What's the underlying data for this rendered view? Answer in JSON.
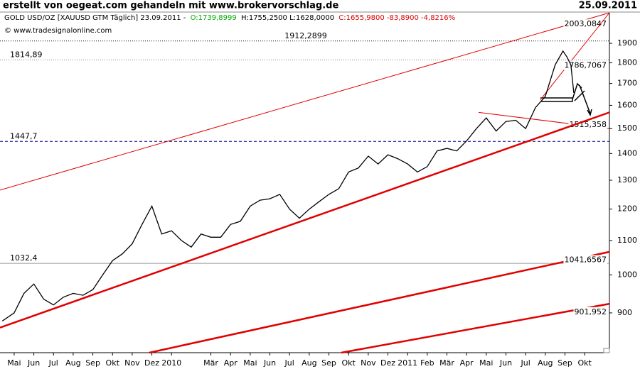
{
  "chart_data": {
    "type": "line",
    "title": "erstellt von oegeat.com gehandeln mit www.brokervorschlag.de",
    "date": "25.09.2011",
    "instrument": "GOLD USD/OZ [XAUUSD GTM  Täglich] 23.09.2011 -",
    "open": "O:1739,8999",
    "high_low": "H:1755,2500 L:1628,0000",
    "close": "C:1655,9800 -83,8900 -4,8216%",
    "source": "© www.tradesignalonline.com",
    "log_scale": true,
    "xlim": [
      -0.72,
      30.26
    ],
    "ylim": [
      806,
      2068
    ],
    "yticks": [
      900,
      1000,
      1100,
      1200,
      1300,
      1400,
      1500,
      1600,
      1700,
      1800,
      1900
    ],
    "xticks": [
      {
        "value": 0,
        "label": "Mai"
      },
      {
        "value": 1,
        "label": "Jun"
      },
      {
        "value": 2,
        "label": "Jul"
      },
      {
        "value": 3,
        "label": "Aug"
      },
      {
        "value": 4,
        "label": "Sep"
      },
      {
        "value": 5,
        "label": "Okt"
      },
      {
        "value": 6,
        "label": "Nov"
      },
      {
        "value": 7,
        "label": "Dez"
      },
      {
        "value": 8,
        "label": "2010"
      },
      {
        "value": 10,
        "label": "Mär"
      },
      {
        "value": 11,
        "label": "Apr"
      },
      {
        "value": 12,
        "label": "Mai"
      },
      {
        "value": 13,
        "label": "Jun"
      },
      {
        "value": 14,
        "label": "Jul"
      },
      {
        "value": 15,
        "label": "Aug"
      },
      {
        "value": 16,
        "label": "Sep"
      },
      {
        "value": 17,
        "label": "Okt"
      },
      {
        "value": 18,
        "label": "Nov"
      },
      {
        "value": 19,
        "label": "Dez"
      },
      {
        "value": 20,
        "label": "2011"
      },
      {
        "value": 21,
        "label": "Feb"
      },
      {
        "value": 22,
        "label": "Mär"
      },
      {
        "value": 23,
        "label": "Apr"
      },
      {
        "value": 24,
        "label": "Mai"
      },
      {
        "value": 25,
        "label": "Jun"
      },
      {
        "value": 26,
        "label": "Jul"
      },
      {
        "value": 27,
        "label": "Aug"
      },
      {
        "value": 28,
        "label": "Sep"
      },
      {
        "value": 29,
        "label": "Okt"
      }
    ],
    "series": [
      {
        "name": "GOLD USD/OZ",
        "color": "#000000",
        "x": [
          -0.6,
          0,
          0.5,
          1,
          1.5,
          2,
          2.5,
          3,
          3.5,
          4,
          4.5,
          5,
          5.5,
          6,
          6.5,
          7,
          7.5,
          8,
          8.5,
          9,
          9.5,
          10,
          10.5,
          11,
          11.5,
          12,
          12.5,
          13,
          13.5,
          14,
          14.5,
          15,
          15.5,
          16,
          16.5,
          17,
          17.5,
          18,
          18.5,
          19,
          19.5,
          20,
          20.5,
          21,
          21.5,
          22,
          22.5,
          23,
          23.5,
          24,
          24.5,
          25,
          25.5,
          26,
          26.5,
          27,
          27.5,
          27.9,
          28.1,
          28.3,
          28.45
        ],
        "values": [
          880,
          900,
          950,
          975,
          935,
          920,
          940,
          950,
          945,
          960,
          1000,
          1040,
          1060,
          1090,
          1150,
          1210,
          1120,
          1130,
          1100,
          1080,
          1120,
          1110,
          1110,
          1150,
          1160,
          1210,
          1230,
          1235,
          1250,
          1200,
          1170,
          1200,
          1225,
          1250,
          1270,
          1330,
          1345,
          1390,
          1360,
          1395,
          1380,
          1360,
          1330,
          1350,
          1410,
          1420,
          1410,
          1450,
          1500,
          1545,
          1490,
          1530,
          1535,
          1500,
          1590,
          1640,
          1790,
          1860,
          1830,
          1790,
          1656
        ]
      }
    ],
    "levels": [
      {
        "value": 1912.2899,
        "label": "1912,2899",
        "style": "dotted",
        "color": "#000000",
        "label_color": "#000080"
      },
      {
        "value": 1814.89,
        "label": "1814,89",
        "style": "dotted",
        "color": "#808080",
        "label_color": "#000080"
      },
      {
        "value": 1447.7,
        "label": "1447,7",
        "style": "dashed",
        "color": "#000080",
        "label_color": "#000080"
      },
      {
        "value": 1032.4,
        "label": "1032,4",
        "style": "solid",
        "color": "#999999",
        "label_color": "#808080"
      }
    ],
    "trendlines": [
      {
        "x": [
          -0.72,
          30.26
        ],
        "y": [
          1265,
          2068
        ],
        "label": "2003,0847",
        "value": 2003.0847,
        "width": 1
      },
      {
        "x": [
          26.75,
          30.26
        ],
        "y": [
          1625,
          2068
        ],
        "label": "1786,7067",
        "value": 1786.7067,
        "width": 1
      },
      {
        "x": [
          23.61,
          30.26
        ],
        "y": [
          1569,
          1500
        ],
        "label": "1515,358",
        "value": 1515.358,
        "width": 1
      },
      {
        "x": [
          -0.72,
          30.26
        ],
        "y": [
          864,
          1569
        ],
        "width": 2.5
      },
      {
        "x": [
          6.87,
          30.26
        ],
        "y": [
          806,
          1066
        ],
        "label": "1041,6567",
        "value": 1041.6567,
        "width": 2.5
      },
      {
        "x": [
          16.63,
          30.26
        ],
        "y": [
          806,
          923
        ],
        "label": "901,952",
        "value": 901.952,
        "width": 2.5
      }
    ],
    "trend_color": "#e00000"
  }
}
